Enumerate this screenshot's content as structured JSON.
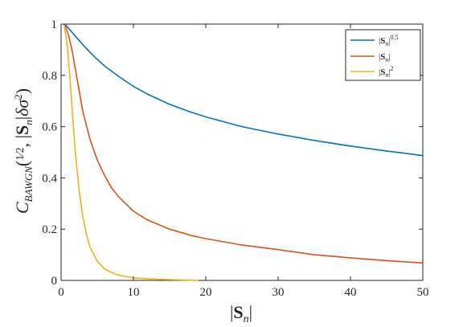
{
  "chart_data": {
    "type": "line",
    "xlabel": "|Sn|",
    "ylabel": "C_BAWGN(1/2, |Sn|δσ²)",
    "xlim": [
      0,
      50
    ],
    "ylim": [
      0,
      1
    ],
    "x_ticks": [
      "0",
      "10",
      "20",
      "30",
      "40",
      "50"
    ],
    "y_ticks": [
      "0",
      "0.2",
      "0.4",
      "0.6",
      "0.8",
      "1"
    ],
    "grid": false,
    "legend_position": "top-right",
    "series": [
      {
        "name": "|Sn|^0.5",
        "color": "#0072BD",
        "points": [
          [
            0.5,
            1.0
          ],
          [
            1,
            0.985
          ],
          [
            2,
            0.952
          ],
          [
            3,
            0.92
          ],
          [
            4,
            0.89
          ],
          [
            5,
            0.862
          ],
          [
            6,
            0.837
          ],
          [
            8,
            0.795
          ],
          [
            10,
            0.757
          ],
          [
            12,
            0.726
          ],
          [
            15,
            0.687
          ],
          [
            18,
            0.656
          ],
          [
            20,
            0.638
          ],
          [
            25,
            0.6
          ],
          [
            30,
            0.571
          ],
          [
            35,
            0.546
          ],
          [
            40,
            0.524
          ],
          [
            45,
            0.505
          ],
          [
            50,
            0.487
          ]
        ]
      },
      {
        "name": "|Sn|",
        "color": "#D95319",
        "points": [
          [
            0.5,
            1.0
          ],
          [
            1,
            0.96
          ],
          [
            1.5,
            0.9
          ],
          [
            2,
            0.82
          ],
          [
            2.5,
            0.74
          ],
          [
            3,
            0.66
          ],
          [
            4,
            0.55
          ],
          [
            5,
            0.47
          ],
          [
            6,
            0.41
          ],
          [
            7,
            0.36
          ],
          [
            8,
            0.325
          ],
          [
            10,
            0.27
          ],
          [
            12,
            0.235
          ],
          [
            15,
            0.2
          ],
          [
            18,
            0.175
          ],
          [
            20,
            0.163
          ],
          [
            25,
            0.138
          ],
          [
            30,
            0.12
          ],
          [
            35,
            0.1
          ],
          [
            40,
            0.088
          ],
          [
            45,
            0.077
          ],
          [
            50,
            0.068
          ]
        ]
      },
      {
        "name": "|Sn|^2",
        "color": "#EDB120",
        "points": [
          [
            0.4,
            1.0
          ],
          [
            0.8,
            0.93
          ],
          [
            1.2,
            0.8
          ],
          [
            1.6,
            0.64
          ],
          [
            2,
            0.49
          ],
          [
            2.5,
            0.35
          ],
          [
            3,
            0.25
          ],
          [
            3.5,
            0.18
          ],
          [
            4,
            0.13
          ],
          [
            5,
            0.075
          ],
          [
            6,
            0.045
          ],
          [
            7,
            0.03
          ],
          [
            8,
            0.02
          ],
          [
            10,
            0.01
          ],
          [
            12,
            0.006
          ],
          [
            15,
            0.003
          ],
          [
            19,
            0.0
          ]
        ]
      }
    ]
  }
}
